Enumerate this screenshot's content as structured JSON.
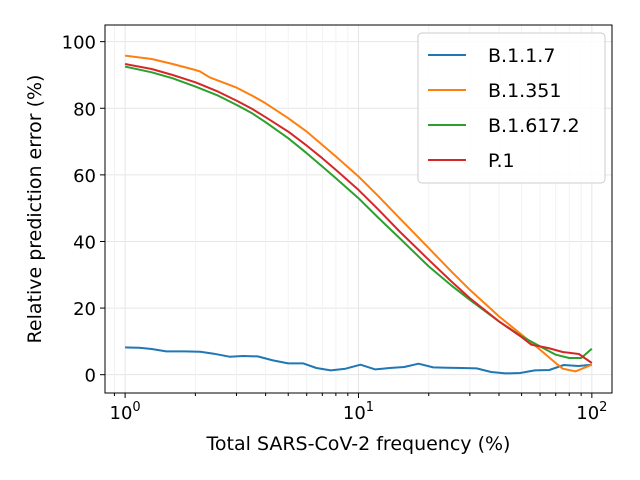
{
  "chart_data": {
    "type": "line",
    "xlabel": "Total SARS-CoV-2 frequency (%)",
    "ylabel": "Relative prediction error (%)",
    "xscale": "log",
    "xlim": [
      0.82,
      122
    ],
    "ylim": [
      -5.5,
      105
    ],
    "x_ticks": [
      {
        "value": 1,
        "base": "10",
        "exp": "0"
      },
      {
        "value": 10,
        "base": "10",
        "exp": "1"
      },
      {
        "value": 100,
        "base": "10",
        "exp": "2"
      }
    ],
    "y_ticks": [
      0,
      20,
      40,
      60,
      80,
      100
    ],
    "grid": true,
    "legend_position": "top-right",
    "series": [
      {
        "name": "B.1.1.7",
        "color": "#1f77b4",
        "points": [
          [
            1.0,
            8.2
          ],
          [
            1.15,
            8.1
          ],
          [
            1.3,
            7.7
          ],
          [
            1.5,
            7.0
          ],
          [
            1.8,
            7.0
          ],
          [
            2.1,
            6.9
          ],
          [
            2.4,
            6.3
          ],
          [
            2.8,
            5.4
          ],
          [
            3.2,
            5.6
          ],
          [
            3.7,
            5.5
          ],
          [
            4.3,
            4.3
          ],
          [
            5.0,
            3.4
          ],
          [
            5.8,
            3.4
          ],
          [
            6.6,
            2.0
          ],
          [
            7.6,
            1.3
          ],
          [
            8.8,
            1.8
          ],
          [
            10.2,
            3.0
          ],
          [
            11.8,
            1.6
          ],
          [
            13.6,
            2.0
          ],
          [
            15.7,
            2.3
          ],
          [
            18.1,
            3.3
          ],
          [
            20.9,
            2.2
          ],
          [
            24.1,
            2.1
          ],
          [
            27.8,
            2.0
          ],
          [
            32.1,
            1.9
          ],
          [
            37.0,
            0.8
          ],
          [
            42.7,
            0.4
          ],
          [
            49.3,
            0.5
          ],
          [
            56.9,
            1.3
          ],
          [
            65.7,
            1.4
          ],
          [
            75.8,
            2.9
          ],
          [
            87.5,
            2.6
          ],
          [
            100.0,
            3.0
          ]
        ]
      },
      {
        "name": "B.1.351",
        "color": "#ff7f0e",
        "points": [
          [
            1.0,
            95.8
          ],
          [
            1.3,
            94.8
          ],
          [
            1.6,
            93.3
          ],
          [
            2.0,
            91.5
          ],
          [
            2.1,
            91.0
          ],
          [
            2.3,
            89.3
          ],
          [
            2.5,
            88.3
          ],
          [
            3.0,
            86.2
          ],
          [
            3.5,
            83.8
          ],
          [
            4.0,
            81.5
          ],
          [
            5.0,
            77.0
          ],
          [
            6.0,
            73.0
          ],
          [
            7.0,
            69.0
          ],
          [
            8.0,
            65.5
          ],
          [
            10.0,
            59.5
          ],
          [
            12.0,
            54.0
          ],
          [
            15.0,
            47.0
          ],
          [
            20.0,
            38.0
          ],
          [
            25.0,
            31.0
          ],
          [
            30.0,
            25.5
          ],
          [
            40.0,
            17.5
          ],
          [
            50.0,
            12.0
          ],
          [
            60.0,
            7.5
          ],
          [
            70.0,
            3.5
          ],
          [
            75.0,
            1.8
          ],
          [
            85.0,
            1.0
          ],
          [
            100.0,
            3.0
          ]
        ]
      },
      {
        "name": "B.1.617.2",
        "color": "#2ca02c",
        "points": [
          [
            1.0,
            92.5
          ],
          [
            1.3,
            90.8
          ],
          [
            1.6,
            89.0
          ],
          [
            2.0,
            86.5
          ],
          [
            2.5,
            83.8
          ],
          [
            3.0,
            81.0
          ],
          [
            3.5,
            78.5
          ],
          [
            4.0,
            75.8
          ],
          [
            5.0,
            71.0
          ],
          [
            6.0,
            66.5
          ],
          [
            7.0,
            62.5
          ],
          [
            8.0,
            59.0
          ],
          [
            10.0,
            53.0
          ],
          [
            12.0,
            47.5
          ],
          [
            15.0,
            41.0
          ],
          [
            20.0,
            32.5
          ],
          [
            25.0,
            26.8
          ],
          [
            30.0,
            22.5
          ],
          [
            40.0,
            16.0
          ],
          [
            50.0,
            11.5
          ],
          [
            60.0,
            8.5
          ],
          [
            70.0,
            6.0
          ],
          [
            80.0,
            5.0
          ],
          [
            90.0,
            5.0
          ],
          [
            100.0,
            7.8
          ]
        ]
      },
      {
        "name": "P.1",
        "color": "#d62728",
        "points": [
          [
            1.0,
            93.3
          ],
          [
            1.3,
            91.8
          ],
          [
            1.6,
            90.0
          ],
          [
            2.0,
            87.8
          ],
          [
            2.5,
            85.0
          ],
          [
            3.0,
            82.3
          ],
          [
            3.5,
            79.8
          ],
          [
            4.0,
            77.3
          ],
          [
            5.0,
            73.0
          ],
          [
            6.0,
            68.8
          ],
          [
            7.0,
            65.0
          ],
          [
            8.0,
            61.5
          ],
          [
            10.0,
            55.5
          ],
          [
            12.0,
            50.0
          ],
          [
            15.0,
            43.0
          ],
          [
            20.0,
            34.5
          ],
          [
            25.0,
            28.0
          ],
          [
            30.0,
            23.0
          ],
          [
            40.0,
            16.0
          ],
          [
            50.0,
            11.3
          ],
          [
            55.0,
            9.0
          ],
          [
            65.0,
            8.0
          ],
          [
            75.0,
            6.8
          ],
          [
            88.0,
            6.2
          ],
          [
            100.0,
            3.5
          ]
        ]
      }
    ]
  }
}
